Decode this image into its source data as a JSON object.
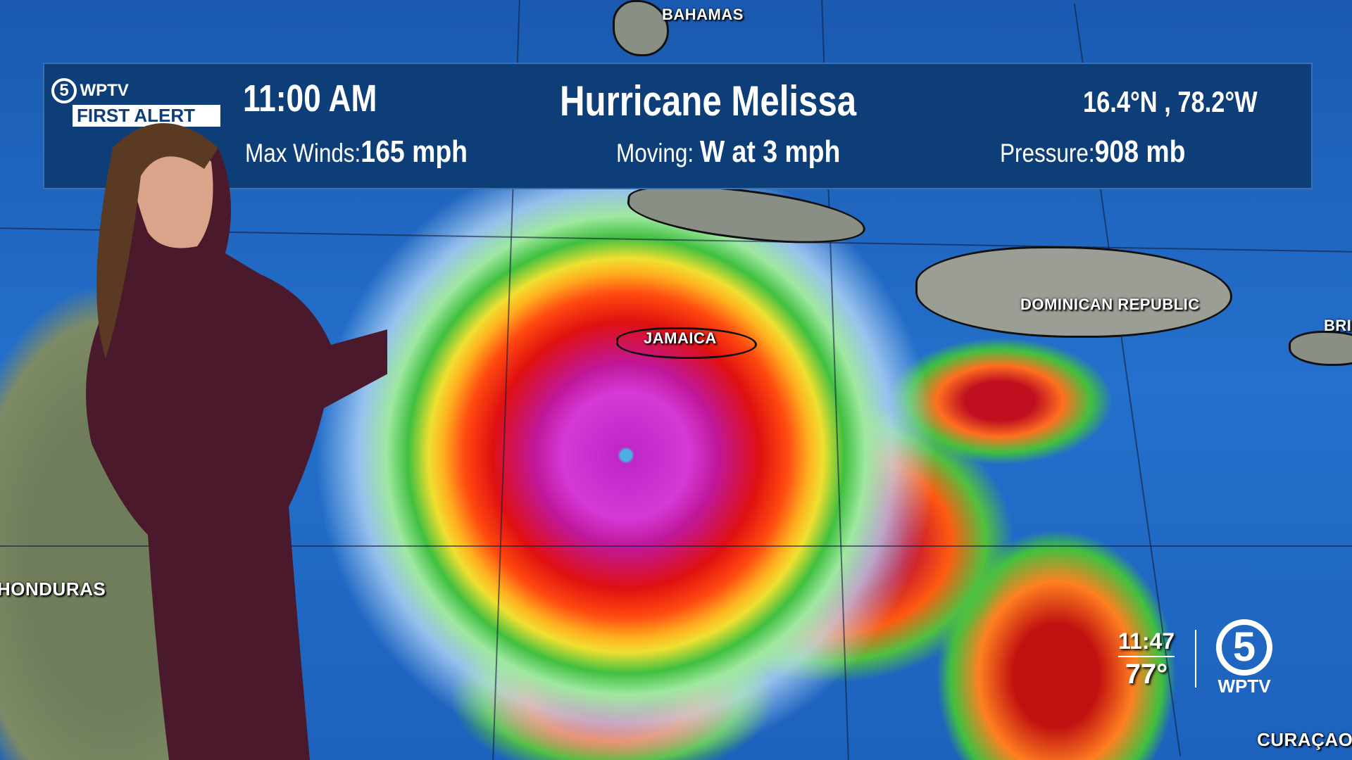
{
  "header": {
    "time": "11:00 AM",
    "storm_name": "Hurricane Melissa",
    "coordinates": "16.4°N , 78.2°W",
    "max_winds_label": "Max Winds:",
    "max_winds_value": "165 mph",
    "moving_label": "Moving:",
    "moving_value": "W at 3 mph",
    "pressure_label": "Pressure:",
    "pressure_value": "908 mb",
    "logo_text": "WPTV",
    "logo_subtext": "FIRST ALERT"
  },
  "map_labels": {
    "bahamas": "BAHAMAS",
    "jamaica": "JAMAICA",
    "dominican_republic": "DOMINICAN REPUBLIC",
    "honduras": "HONDURAS",
    "curacao": "CURAÇAO",
    "partial_right": "BRI"
  },
  "station_bug": {
    "clock": "11:47",
    "temperature": "77°",
    "station": "WPTV",
    "channel": "5"
  },
  "colors": {
    "banner": "#0d3e78",
    "ocean": "#1d5fb8",
    "storm_core": "#d43ad6"
  }
}
